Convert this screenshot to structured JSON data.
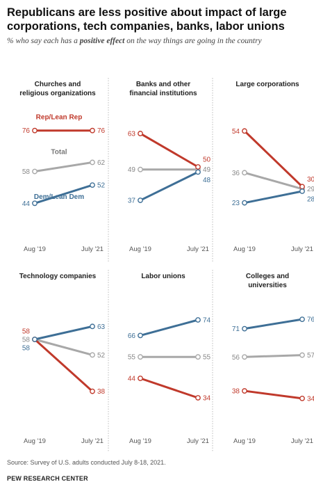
{
  "title": "Republicans are less positive about impact of large corporations, tech companies, banks, labor unions",
  "subtitle": {
    "before": "% who say each has a ",
    "emphasis": "positive effect",
    "after": " on the way things are going in the country"
  },
  "source": "Source: Survey of U.S. adults conducted July 8-18, 2021.",
  "brand": "PEW RESEARCH CENTER",
  "colors": {
    "rep": "#c0392b",
    "total": "#a8a8a8",
    "dem": "#3e6f96",
    "axis": "#bbbbbb",
    "text": "#555555"
  },
  "chart_data": {
    "type": "line",
    "x": [
      "Aug '19",
      "July '21"
    ],
    "legend_labels": {
      "rep": "Rep/Lean Rep",
      "total": "Total",
      "dem": "Dem/Lean Dem"
    },
    "ylim": [
      0,
      100
    ],
    "panels": [
      {
        "title": [
          "Churches and",
          "religious organizations"
        ],
        "rep": [
          76,
          76
        ],
        "total": [
          58,
          62
        ],
        "dem": [
          44,
          52
        ]
      },
      {
        "title": [
          "Banks and other",
          "financial institutions"
        ],
        "rep": [
          63,
          50
        ],
        "total": [
          49,
          49
        ],
        "dem": [
          37,
          48
        ]
      },
      {
        "title": [
          "Large corporations"
        ],
        "rep": [
          54,
          30
        ],
        "total": [
          36,
          29
        ],
        "dem": [
          23,
          28
        ]
      },
      {
        "title": [
          "Technology companies"
        ],
        "rep": [
          58,
          38
        ],
        "total": [
          58,
          52
        ],
        "dem": [
          58,
          63
        ]
      },
      {
        "title": [
          "Labor unions"
        ],
        "rep": [
          44,
          34
        ],
        "total": [
          55,
          55
        ],
        "dem": [
          66,
          74
        ]
      },
      {
        "title": [
          "Colleges and",
          "universities"
        ],
        "rep": [
          38,
          34
        ],
        "total": [
          56,
          57
        ],
        "dem": [
          71,
          76
        ]
      }
    ]
  }
}
